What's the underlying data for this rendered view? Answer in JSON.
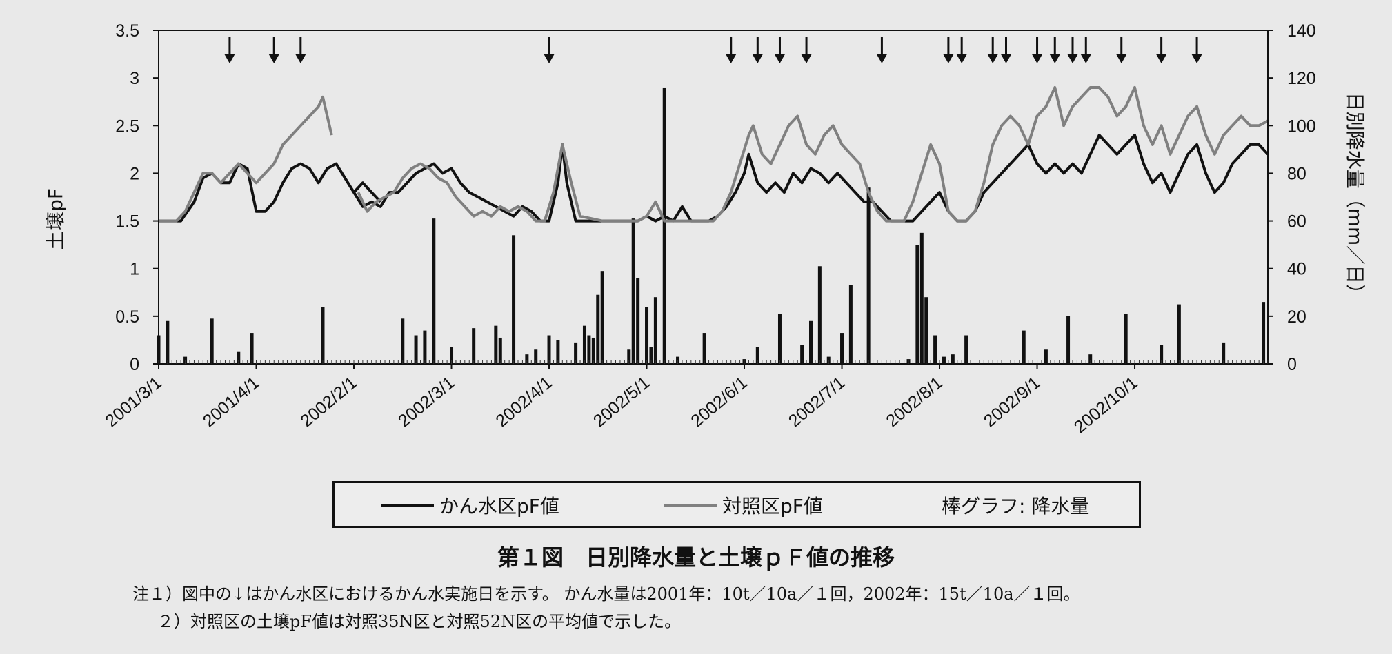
{
  "chart_data": {
    "type": "bar+line",
    "title": "第１図　日別降水量と土壌ｐＦ値の推移",
    "ylabel_left": "土壌pF",
    "ylabel_right": "日別降水量（mm／日）",
    "ylim_left": [
      0,
      3.5
    ],
    "ylim_right": [
      0,
      140
    ],
    "yticks_left": [
      "0",
      "0.5",
      "1",
      "1.5",
      "2",
      "2.5",
      "3",
      "3.5"
    ],
    "yticks_right": [
      "0",
      "20",
      "40",
      "60",
      "80",
      "100",
      "120",
      "140"
    ],
    "xtick_labels": [
      "2001/3/1",
      "2001/4/1",
      "2002/2/1",
      "2002/3/1",
      "2002/4/1",
      "2002/5/1",
      "2002/6/1",
      "2002/7/1",
      "2002/8/1",
      "2002/9/1",
      "2002/10/1"
    ],
    "x_domain": [
      0,
      250
    ],
    "xtick_positions": [
      0,
      22,
      44,
      66,
      88,
      110,
      132,
      154,
      176,
      198,
      220
    ],
    "irrigation_days": [
      16,
      26,
      32,
      88,
      129,
      135,
      140,
      146,
      163,
      178,
      181,
      188,
      191,
      198,
      202,
      206,
      209,
      217,
      226,
      234
    ],
    "series": [
      {
        "name": "かん水区pF値",
        "color": "#111111",
        "segments": [
          [
            [
              0,
              1.5
            ],
            [
              5,
              1.5
            ],
            [
              8,
              1.7
            ],
            [
              10,
              1.95
            ],
            [
              12,
              2
            ],
            [
              14,
              1.9
            ],
            [
              16,
              1.9
            ],
            [
              18,
              2.1
            ],
            [
              20,
              2.05
            ],
            [
              22,
              1.6
            ],
            [
              24,
              1.6
            ],
            [
              26,
              1.7
            ],
            [
              28,
              1.9
            ],
            [
              30,
              2.05
            ],
            [
              32,
              2.1
            ],
            [
              34,
              2.05
            ],
            [
              36,
              1.9
            ],
            [
              38,
              2.05
            ],
            [
              40,
              2.1
            ],
            [
              42,
              1.95
            ],
            [
              44,
              1.8
            ],
            [
              46,
              1.9
            ],
            [
              48,
              1.8
            ],
            [
              50,
              1.7
            ]
          ],
          [
            [
              44,
              1.8
            ],
            [
              46,
              1.65
            ],
            [
              48,
              1.7
            ],
            [
              50,
              1.65
            ],
            [
              52,
              1.8
            ],
            [
              54,
              1.8
            ],
            [
              56,
              1.9
            ],
            [
              58,
              2.0
            ],
            [
              60,
              2.05
            ],
            [
              62,
              2.1
            ],
            [
              64,
              2.0
            ],
            [
              66,
              2.05
            ],
            [
              68,
              1.9
            ],
            [
              70,
              1.8
            ],
            [
              72,
              1.75
            ],
            [
              74,
              1.7
            ],
            [
              76,
              1.65
            ],
            [
              78,
              1.6
            ],
            [
              80,
              1.55
            ],
            [
              82,
              1.65
            ],
            [
              84,
              1.6
            ],
            [
              86,
              1.5
            ],
            [
              88,
              1.5
            ],
            [
              90,
              1.9
            ],
            [
              91,
              2.3
            ],
            [
              92,
              1.9
            ],
            [
              94,
              1.5
            ],
            [
              100,
              1.5
            ],
            [
              104,
              1.5
            ],
            [
              108,
              1.5
            ],
            [
              110,
              1.55
            ],
            [
              112,
              1.5
            ],
            [
              114,
              1.55
            ],
            [
              116,
              1.5
            ],
            [
              118,
              1.65
            ],
            [
              120,
              1.5
            ],
            [
              124,
              1.5
            ],
            [
              126,
              1.55
            ],
            [
              128,
              1.65
            ],
            [
              130,
              1.8
            ],
            [
              132,
              2.0
            ],
            [
              133,
              2.2
            ],
            [
              135,
              1.9
            ],
            [
              137,
              1.8
            ],
            [
              139,
              1.9
            ],
            [
              141,
              1.8
            ],
            [
              143,
              2.0
            ],
            [
              145,
              1.9
            ],
            [
              147,
              2.05
            ],
            [
              149,
              2.0
            ],
            [
              151,
              1.9
            ],
            [
              153,
              2.0
            ],
            [
              155,
              1.9
            ],
            [
              157,
              1.8
            ],
            [
              159,
              1.7
            ],
            [
              161,
              1.7
            ],
            [
              163,
              1.6
            ],
            [
              165,
              1.5
            ],
            [
              167,
              1.5
            ],
            [
              170,
              1.5
            ],
            [
              172,
              1.6
            ],
            [
              174,
              1.7
            ],
            [
              176,
              1.8
            ],
            [
              178,
              1.6
            ],
            [
              180,
              1.5
            ],
            [
              182,
              1.5
            ],
            [
              184,
              1.6
            ],
            [
              186,
              1.8
            ],
            [
              188,
              1.9
            ],
            [
              190,
              2.0
            ],
            [
              192,
              2.1
            ],
            [
              194,
              2.2
            ],
            [
              196,
              2.3
            ],
            [
              198,
              2.1
            ],
            [
              200,
              2.0
            ],
            [
              202,
              2.1
            ],
            [
              204,
              2.0
            ],
            [
              206,
              2.1
            ],
            [
              208,
              2.0
            ],
            [
              210,
              2.2
            ],
            [
              212,
              2.4
            ],
            [
              214,
              2.3
            ],
            [
              216,
              2.2
            ],
            [
              218,
              2.3
            ],
            [
              220,
              2.4
            ],
            [
              222,
              2.1
            ],
            [
              224,
              1.9
            ],
            [
              226,
              2.0
            ],
            [
              228,
              1.8
            ],
            [
              230,
              2.0
            ],
            [
              232,
              2.2
            ],
            [
              234,
              2.3
            ],
            [
              236,
              2.0
            ],
            [
              238,
              1.8
            ],
            [
              240,
              1.9
            ],
            [
              242,
              2.1
            ],
            [
              244,
              2.2
            ],
            [
              246,
              2.3
            ],
            [
              248,
              2.3
            ],
            [
              250,
              2.2
            ]
          ]
        ]
      },
      {
        "name": "対照区pF値",
        "color": "#808080",
        "segments": [
          [
            [
              0,
              1.5
            ],
            [
              4,
              1.5
            ],
            [
              6,
              1.6
            ],
            [
              8,
              1.8
            ],
            [
              10,
              2.0
            ],
            [
              12,
              2.0
            ],
            [
              14,
              1.9
            ],
            [
              16,
              2.0
            ],
            [
              18,
              2.1
            ],
            [
              20,
              2.0
            ],
            [
              22,
              1.9
            ],
            [
              24,
              2.0
            ],
            [
              26,
              2.1
            ],
            [
              28,
              2.3
            ],
            [
              30,
              2.4
            ],
            [
              32,
              2.5
            ],
            [
              34,
              2.6
            ],
            [
              36,
              2.7
            ],
            [
              37,
              2.8
            ],
            [
              38,
              2.6
            ],
            [
              39,
              2.4
            ]
          ],
          [
            [
              45,
              1.8
            ],
            [
              47,
              1.6
            ],
            [
              49,
              1.7
            ],
            [
              51,
              1.75
            ],
            [
              53,
              1.8
            ],
            [
              55,
              1.95
            ],
            [
              57,
              2.05
            ],
            [
              59,
              2.1
            ],
            [
              61,
              2.05
            ],
            [
              63,
              1.95
            ],
            [
              65,
              1.9
            ],
            [
              67,
              1.75
            ],
            [
              69,
              1.65
            ],
            [
              71,
              1.55
            ],
            [
              73,
              1.6
            ],
            [
              75,
              1.55
            ],
            [
              77,
              1.65
            ],
            [
              79,
              1.6
            ],
            [
              81,
              1.65
            ],
            [
              83,
              1.6
            ],
            [
              85,
              1.5
            ],
            [
              87,
              1.5
            ],
            [
              89,
              1.8
            ],
            [
              91,
              2.3
            ],
            [
              93,
              1.9
            ],
            [
              95,
              1.55
            ],
            [
              100,
              1.5
            ],
            [
              108,
              1.5
            ],
            [
              110,
              1.55
            ],
            [
              112,
              1.7
            ],
            [
              114,
              1.5
            ],
            [
              120,
              1.5
            ],
            [
              125,
              1.5
            ],
            [
              127,
              1.6
            ],
            [
              129,
              1.8
            ],
            [
              131,
              2.1
            ],
            [
              133,
              2.4
            ],
            [
              134,
              2.5
            ],
            [
              136,
              2.2
            ],
            [
              138,
              2.1
            ],
            [
              140,
              2.3
            ],
            [
              142,
              2.5
            ],
            [
              144,
              2.6
            ],
            [
              146,
              2.3
            ],
            [
              148,
              2.2
            ],
            [
              150,
              2.4
            ],
            [
              152,
              2.5
            ],
            [
              154,
              2.3
            ],
            [
              156,
              2.2
            ],
            [
              158,
              2.1
            ],
            [
              160,
              1.8
            ],
            [
              162,
              1.6
            ],
            [
              164,
              1.5
            ],
            [
              168,
              1.5
            ],
            [
              170,
              1.7
            ],
            [
              172,
              2.0
            ],
            [
              174,
              2.3
            ],
            [
              176,
              2.1
            ],
            [
              178,
              1.6
            ],
            [
              180,
              1.5
            ],
            [
              182,
              1.5
            ],
            [
              184,
              1.6
            ],
            [
              186,
              1.9
            ],
            [
              188,
              2.3
            ],
            [
              190,
              2.5
            ],
            [
              192,
              2.6
            ],
            [
              194,
              2.5
            ],
            [
              196,
              2.3
            ],
            [
              198,
              2.6
            ],
            [
              200,
              2.7
            ],
            [
              202,
              2.9
            ],
            [
              204,
              2.5
            ],
            [
              206,
              2.7
            ],
            [
              208,
              2.8
            ],
            [
              210,
              2.9
            ],
            [
              212,
              2.9
            ],
            [
              214,
              2.8
            ],
            [
              216,
              2.6
            ],
            [
              218,
              2.7
            ],
            [
              220,
              2.9
            ],
            [
              222,
              2.5
            ],
            [
              224,
              2.3
            ],
            [
              226,
              2.5
            ],
            [
              228,
              2.2
            ],
            [
              230,
              2.4
            ],
            [
              232,
              2.6
            ],
            [
              234,
              2.7
            ],
            [
              236,
              2.4
            ],
            [
              238,
              2.2
            ],
            [
              240,
              2.4
            ],
            [
              242,
              2.5
            ],
            [
              244,
              2.6
            ],
            [
              246,
              2.5
            ],
            [
              248,
              2.5
            ],
            [
              250,
              2.55
            ]
          ]
        ]
      },
      {
        "name": "降水量",
        "type": "bar",
        "color": "#111111",
        "x": [
          0,
          2,
          6,
          12,
          18,
          21,
          37,
          55,
          58,
          60,
          62,
          66,
          71,
          76,
          77,
          80,
          83,
          85,
          88,
          90,
          94,
          96,
          97,
          98,
          99,
          100,
          106,
          107,
          108,
          110,
          111,
          112,
          114,
          117,
          123,
          132,
          135,
          140,
          145,
          147,
          149,
          151,
          154,
          156,
          160,
          169,
          171,
          172,
          173,
          175,
          177,
          179,
          182,
          195,
          200,
          205,
          210,
          218,
          226,
          230,
          240,
          249
        ],
        "values": [
          12,
          18,
          3,
          19,
          5,
          13,
          24,
          19,
          12,
          14,
          61,
          7,
          15,
          16,
          11,
          54,
          4,
          6,
          12,
          10,
          9,
          16,
          12,
          11,
          29,
          39,
          6,
          61,
          36,
          24,
          7,
          28,
          116,
          3,
          13,
          2,
          7,
          21,
          8,
          18,
          41,
          3,
          13,
          33,
          74,
          2,
          50,
          55,
          28,
          12,
          3,
          4,
          12,
          14,
          6,
          20,
          4,
          21,
          8,
          25,
          9,
          26
        ]
      }
    ],
    "legend": {
      "irrigated_label": "かん水区pF値",
      "control_label": "対照区pF値",
      "bar_label": "棒グラフ: 降水量"
    }
  },
  "notes": {
    "note1": "注１）図中の↓はかん水区におけるかん水実施日を示す。 かん水量は2001年：10t／10a／１回，2002年：15t／10a／１回。",
    "note2": "２）対照区の土壌pF値は対照35N区と対照52N区の平均値で示した。"
  }
}
